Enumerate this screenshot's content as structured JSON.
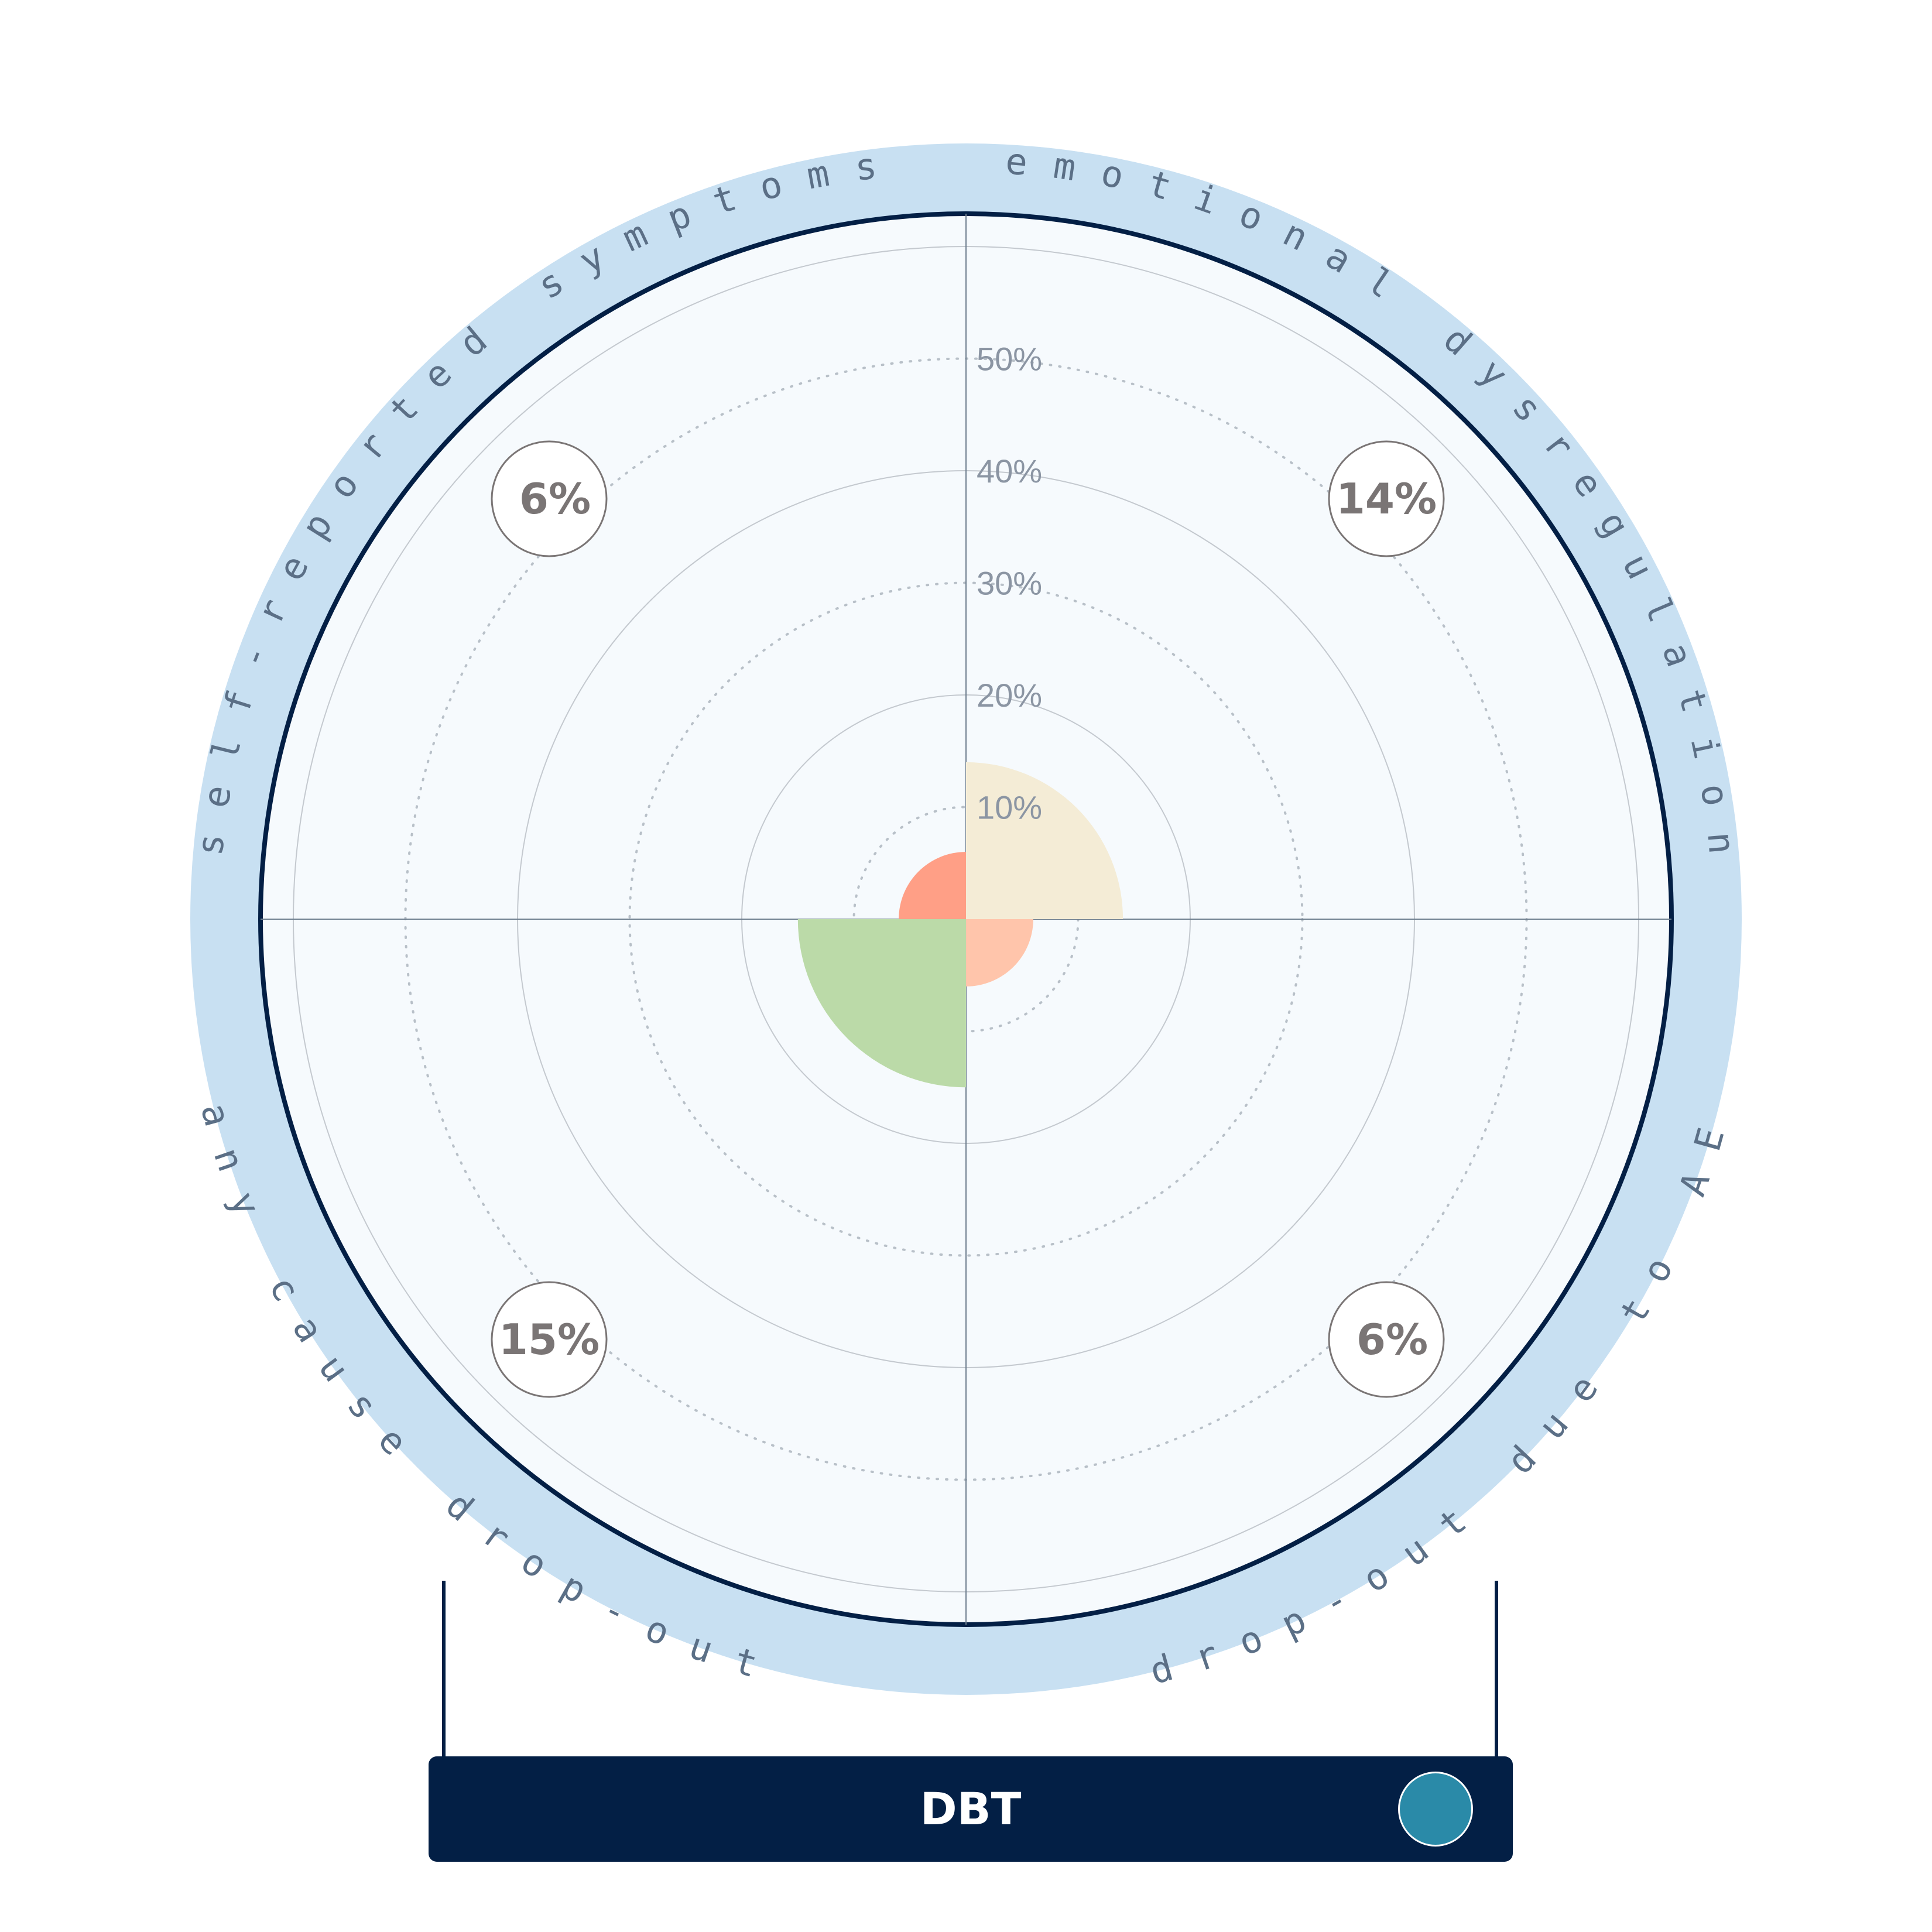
{
  "chart_data": {
    "type": "polar-bar",
    "title": "",
    "radial_ticks": [
      "10%",
      "20%",
      "30%",
      "40%",
      "50%"
    ],
    "radial_max": 63,
    "segments": [
      {
        "name": "emotional dysregulation",
        "value": 14,
        "label": "14%",
        "color": "#f4ecd6"
      },
      {
        "name": "drop-out due to AE",
        "value": 6,
        "label": "6%",
        "color": "#ffc5ab"
      },
      {
        "name": "any cause drop-out",
        "value": 15,
        "label": "15%",
        "color": "#bbdaa8"
      },
      {
        "name": "self-reported symptoms",
        "value": 6,
        "label": "6%",
        "color": "#ff9f86"
      }
    ],
    "grid": true
  },
  "ring_labels": {
    "self_reported": "self-reported symptoms",
    "emotional": "emotional dysregulation",
    "dropout_ae": "drop-out due to AE",
    "any_cause": "any cause drop-out"
  },
  "footer": {
    "label": "DBT",
    "dot_color": "#2a8aa8"
  },
  "colors": {
    "outer_ring": "#c8e0f2",
    "border": "#031f45",
    "plot_bg": "#f6fafd"
  }
}
